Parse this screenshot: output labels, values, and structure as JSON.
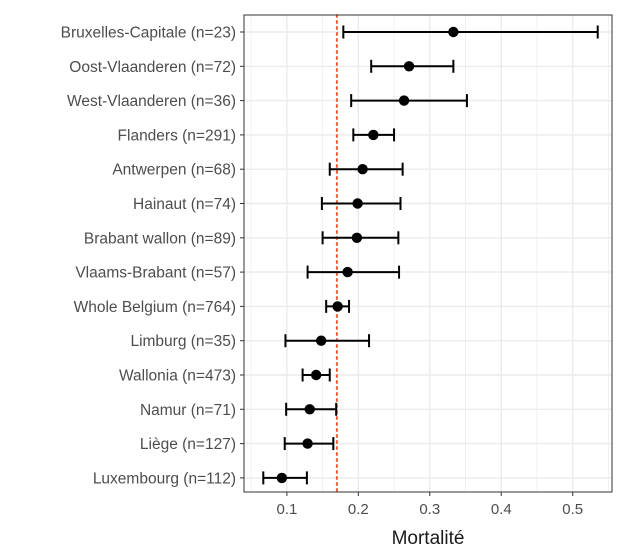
{
  "chart_data": {
    "type": "scatter",
    "subtype": "dot-with-error-bars",
    "title": "",
    "xlabel": "Mortalité",
    "ylabel": "",
    "xlim": [
      0.04,
      0.555
    ],
    "x_ticks": [
      0.1,
      0.2,
      0.3,
      0.4,
      0.5
    ],
    "x_tick_labels": [
      "0.1",
      "0.2",
      "0.3",
      "0.4",
      "0.5"
    ],
    "grid": true,
    "reference_line": {
      "x": 0.17,
      "style": "dotted",
      "color": "#e8603c"
    },
    "categories": [
      "Bruxelles-Capitale (n=23)",
      "Oost-Vlaanderen (n=72)",
      "West-Vlaanderen (n=36)",
      "Flanders (n=291)",
      "Antwerpen (n=68)",
      "Hainaut (n=74)",
      "Brabant wallon (n=89)",
      "Vlaams-Brabant (n=57)",
      "Whole Belgium (n=764)",
      "Limburg (n=35)",
      "Wallonia (n=473)",
      "Namur (n=71)",
      "Liège (n=127)",
      "Luxembourg (n=112)"
    ],
    "estimates": [
      0.333,
      0.271,
      0.264,
      0.221,
      0.206,
      0.199,
      0.198,
      0.185,
      0.171,
      0.148,
      0.141,
      0.132,
      0.129,
      0.093
    ],
    "lower": [
      0.179,
      0.218,
      0.19,
      0.193,
      0.16,
      0.149,
      0.15,
      0.129,
      0.155,
      0.098,
      0.122,
      0.099,
      0.097,
      0.067
    ],
    "upper": [
      0.535,
      0.333,
      0.352,
      0.25,
      0.262,
      0.259,
      0.256,
      0.257,
      0.187,
      0.215,
      0.16,
      0.169,
      0.165,
      0.128
    ],
    "colors": {
      "point": "#000000",
      "error_bar": "#000000",
      "grid": "#ebebeb",
      "panel_border": "#333333",
      "reference_line": "#e8603c"
    }
  }
}
